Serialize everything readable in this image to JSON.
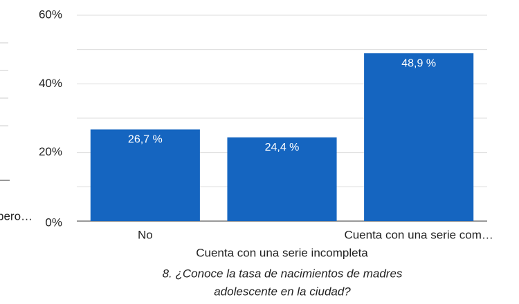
{
  "fragment_label": "pero…",
  "chart_data": {
    "type": "bar",
    "title": [
      "8. ¿Conoce la tasa de nacimientos de madres",
      "adolescente en la ciudad?"
    ],
    "categories": [
      "No",
      "Cuenta con una serie incompleta",
      "Cuenta con una serie com…"
    ],
    "values": [
      26.7,
      24.4,
      48.9
    ],
    "value_labels": [
      "26,7 %",
      "24,4 %",
      "48,9 %"
    ],
    "color": "#1565c0",
    "ylim": [
      0,
      60
    ],
    "yticks": [
      {
        "value": 0,
        "label": "0%"
      },
      {
        "value": 20,
        "label": "20%"
      },
      {
        "value": 40,
        "label": "40%"
      },
      {
        "value": 60,
        "label": "60%"
      }
    ],
    "minor_yticks": [
      10,
      30,
      50
    ],
    "grid": true
  }
}
